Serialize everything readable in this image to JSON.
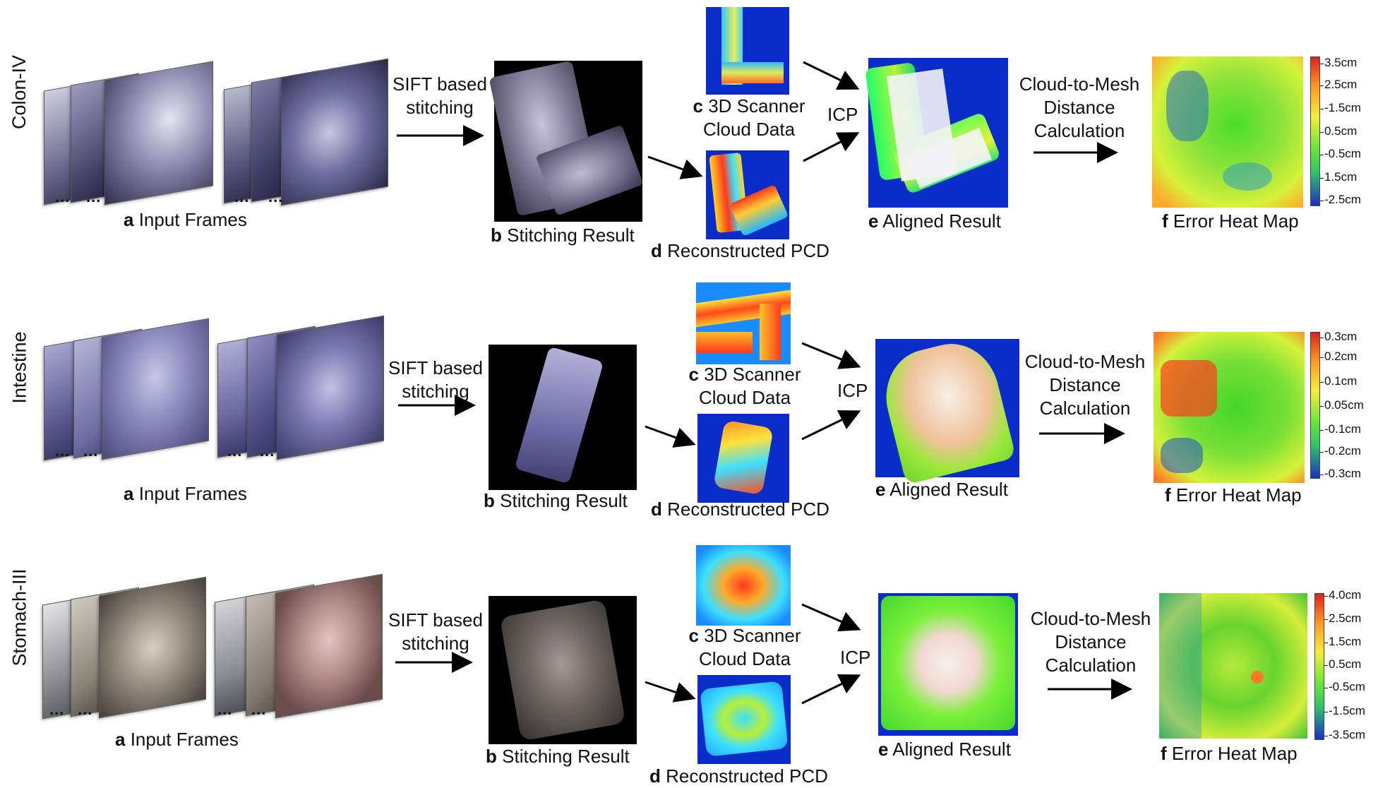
{
  "rows": [
    {
      "name": "Colon-IV",
      "input_caption": {
        "letter": "a",
        "text": "Input Frames"
      },
      "sift_text": "SIFT based stitching",
      "stitching_caption": {
        "letter": "b",
        "text": "Stitching Result"
      },
      "scanner_caption": {
        "letter": "c",
        "text": "3D Scanner",
        "line2": "Cloud Data"
      },
      "recon_caption": {
        "letter": "d",
        "text": "Reconstructed PCD"
      },
      "icp": "ICP",
      "aligned_caption": {
        "letter": "e",
        "text": "Aligned Result"
      },
      "c2m_text": "Cloud-to-Mesh Distance Calculation",
      "heatmap_caption": {
        "letter": "f",
        "text": "Error Heat Map"
      },
      "colorbar_ticks": [
        "3.5cm",
        "2.5cm",
        "-1.5cm",
        "0.5cm",
        "-0.5cm",
        "1.5cm",
        "-2.5cm"
      ],
      "colors": {
        "tissue": "#7d78a8",
        "dark": "#2c2a48"
      }
    },
    {
      "name": "Intestine",
      "input_caption": {
        "letter": "a",
        "text": "Input Frames"
      },
      "sift_text": "SIFT based stitching",
      "stitching_caption": {
        "letter": "b",
        "text": "Stitching Result"
      },
      "scanner_caption": {
        "letter": "c",
        "text": "3D Scanner",
        "line2": "Cloud Data"
      },
      "recon_caption": {
        "letter": "d",
        "text": "Reconstructed PCD"
      },
      "icp": "ICP",
      "aligned_caption": {
        "letter": "e",
        "text": "Aligned Result"
      },
      "c2m_text": "Cloud-to-Mesh Distance Calculation",
      "heatmap_caption": {
        "letter": "f",
        "text": "Error Heat Map"
      },
      "colorbar_ticks": [
        "0.3cm",
        "0.2cm",
        "0.1cm",
        "0.05cm",
        "-0.1cm",
        "-0.2cm",
        "-0.3cm"
      ],
      "colors": {
        "tissue": "#8f8cc2",
        "dark": "#3c3a66"
      }
    },
    {
      "name": "Stomach-III",
      "input_caption": {
        "letter": "a",
        "text": "Input Frames"
      },
      "sift_text": "SIFT based stitching",
      "stitching_caption": {
        "letter": "b",
        "text": "Stitching Result"
      },
      "scanner_caption": {
        "letter": "c",
        "text": "3D Scanner",
        "line2": "Cloud Data"
      },
      "recon_caption": {
        "letter": "d",
        "text": "Reconstructed PCD"
      },
      "icp": "ICP",
      "aligned_caption": {
        "letter": "e",
        "text": "Aligned Result"
      },
      "c2m_text": "Cloud-to-Mesh Distance Calculation",
      "heatmap_caption": {
        "letter": "f",
        "text": "Error Heat Map"
      },
      "colorbar_ticks": [
        "4.0cm",
        "2.5cm",
        "1.5cm",
        "0.5cm",
        "-0.5cm",
        "-1.5cm",
        "-3.5cm"
      ],
      "colors": {
        "tissue": "#8a7f78",
        "dark": "#3e3530"
      }
    }
  ],
  "ellipsis": "..."
}
